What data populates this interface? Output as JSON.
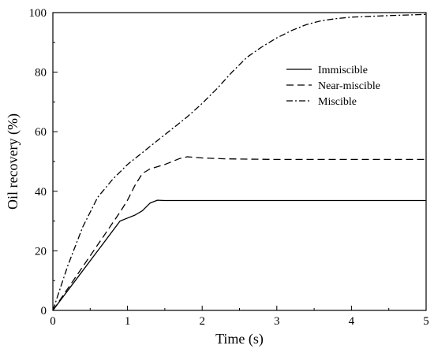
{
  "chart_data": {
    "type": "line",
    "xlabel": "Time (s)",
    "ylabel": "Oil recovery (%)",
    "xlim": [
      0,
      5
    ],
    "ylim": [
      0,
      100
    ],
    "xticks": [
      "0",
      "1",
      "2",
      "3",
      "4",
      "5"
    ],
    "yticks": [
      "0",
      "20",
      "40",
      "60",
      "80",
      "100"
    ],
    "grid": false,
    "legend": "top-right",
    "series": [
      {
        "name": "Immiscible",
        "style": "solid",
        "color": "#000000",
        "points": [
          [
            0,
            0
          ],
          [
            0.3,
            10
          ],
          [
            0.6,
            20
          ],
          [
            0.9,
            30
          ],
          [
            1.0,
            31
          ],
          [
            1.1,
            32
          ],
          [
            1.2,
            33.5
          ],
          [
            1.3,
            36
          ],
          [
            1.4,
            37
          ],
          [
            1.5,
            36.9
          ],
          [
            2,
            36.9
          ],
          [
            3,
            36.9
          ],
          [
            4,
            36.9
          ],
          [
            5,
            36.9
          ]
        ]
      },
      {
        "name": "Near-miscible",
        "style": "dashed",
        "color": "#000000",
        "points": [
          [
            0,
            0
          ],
          [
            0.3,
            11
          ],
          [
            0.6,
            22
          ],
          [
            0.9,
            33
          ],
          [
            1.0,
            37
          ],
          [
            1.1,
            42
          ],
          [
            1.2,
            46
          ],
          [
            1.3,
            47.5
          ],
          [
            1.5,
            49
          ],
          [
            1.7,
            51
          ],
          [
            1.8,
            51.6
          ],
          [
            2.0,
            51.2
          ],
          [
            2.3,
            50.9
          ],
          [
            2.6,
            50.8
          ],
          [
            3,
            50.7
          ],
          [
            4,
            50.7
          ],
          [
            5,
            50.7
          ]
        ]
      },
      {
        "name": "Miscible",
        "style": "dashdot",
        "color": "#000000",
        "points": [
          [
            0,
            0
          ],
          [
            0.2,
            15
          ],
          [
            0.4,
            28
          ],
          [
            0.6,
            38
          ],
          [
            0.8,
            44
          ],
          [
            1.0,
            49
          ],
          [
            1.2,
            53
          ],
          [
            1.4,
            57
          ],
          [
            1.6,
            61
          ],
          [
            1.8,
            65
          ],
          [
            2.0,
            69.5
          ],
          [
            2.2,
            74.5
          ],
          [
            2.4,
            80
          ],
          [
            2.6,
            85
          ],
          [
            2.8,
            88.5
          ],
          [
            3.0,
            91.5
          ],
          [
            3.2,
            94
          ],
          [
            3.4,
            96
          ],
          [
            3.6,
            97.3
          ],
          [
            3.8,
            98
          ],
          [
            4.0,
            98.5
          ],
          [
            4.5,
            99
          ],
          [
            5,
            99.4
          ]
        ]
      }
    ]
  }
}
